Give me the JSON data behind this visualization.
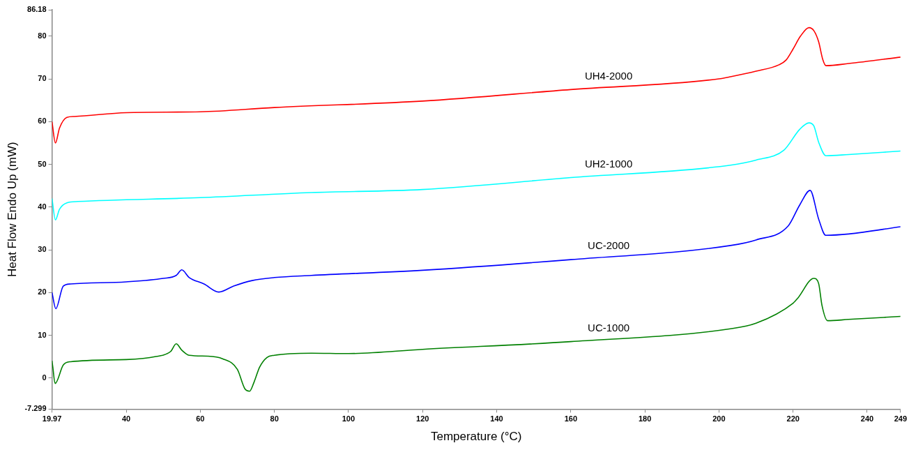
{
  "chart_data": {
    "type": "line",
    "xlabel": "Temperature (°C)",
    "ylabel": "Heat Flow Endo Up (mW)",
    "xlim": [
      19.97,
      249
    ],
    "ylim": [
      -7.299,
      86.18
    ],
    "xticks": [
      19.97,
      40,
      60,
      80,
      100,
      120,
      140,
      160,
      180,
      200,
      220,
      240,
      249
    ],
    "yticks": [
      -7.299,
      0,
      10,
      20,
      30,
      40,
      50,
      60,
      70,
      80,
      86.18
    ],
    "grid": false,
    "legend": false,
    "marker": "none",
    "line_style": "solid",
    "series": [
      {
        "name": "UH4-2000",
        "color": "#ff0000",
        "x": [
          19.97,
          20.9,
          22,
          24,
          26,
          40,
          60,
          80,
          120,
          160,
          200,
          203.1,
          210,
          216.2,
          218.1,
          220,
          222,
          224.3,
          225.6,
          226.9,
          228,
          228.9,
          235,
          249
        ],
        "values": [
          60,
          55,
          58.5,
          61,
          61.2,
          62.1,
          62.3,
          63.3,
          64.8,
          67.5,
          70,
          70.5,
          71.8,
          73.3,
          74.4,
          77,
          80,
          82,
          81.3,
          78.7,
          74.6,
          73.1,
          73.6,
          75.1
        ]
      },
      {
        "name": "UH2-1000",
        "color": "#00ffff",
        "x": [
          19.97,
          20.9,
          22,
          24,
          27,
          60,
          90,
          120,
          160,
          203.1,
          210,
          217.5,
          221.8,
          224.3,
          225.6,
          226.9,
          228.9,
          235,
          249
        ],
        "values": [
          42,
          37,
          39.5,
          41,
          41.3,
          42.2,
          43.4,
          44.1,
          46.9,
          49.8,
          51,
          53.3,
          58.2,
          59.7,
          59,
          55.2,
          52,
          52.3,
          53.1
        ]
      },
      {
        "name": "UC-2000",
        "color": "#0000ff",
        "x": [
          19.97,
          21,
          23,
          25,
          40,
          50,
          53.5,
          55,
          57,
          61,
          65,
          69,
          74,
          80,
          90,
          120,
          160,
          203.1,
          210,
          218.7,
          221.8,
          224.6,
          226.9,
          228.8,
          235,
          249
        ],
        "values": [
          20,
          16.2,
          21.5,
          22,
          22.5,
          23.3,
          24,
          25.3,
          23.5,
          22,
          20.1,
          21.5,
          22.8,
          23.5,
          24,
          25.2,
          27.7,
          31,
          32.3,
          35.6,
          40.5,
          43.9,
          37.2,
          33.4,
          33.7,
          35.4
        ]
      },
      {
        "name": "UC-1000",
        "color": "#008000",
        "x": [
          19.97,
          20.2,
          20.8,
          23,
          25,
          40,
          48,
          52,
          53.5,
          55,
          57,
          62,
          66,
          70,
          72,
          73.3,
          74.5,
          76,
          78,
          80,
          90,
          100,
          120,
          160,
          203.1,
          210,
          220,
          221.3,
          225.6,
          226.9,
          227.8,
          229.3,
          235,
          249
        ],
        "values": [
          4,
          2.5,
          -1.3,
          3,
          3.8,
          4.3,
          5,
          6.2,
          8,
          6.5,
          5.3,
          5.1,
          4.5,
          2,
          -2.5,
          -3.1,
          -1,
          2.5,
          4.8,
          5.3,
          5.8,
          5.7,
          6.7,
          8.5,
          11.5,
          12.8,
          17.5,
          18.7,
          23.3,
          22.1,
          17,
          13.4,
          13.7,
          14.4
        ]
      }
    ]
  }
}
